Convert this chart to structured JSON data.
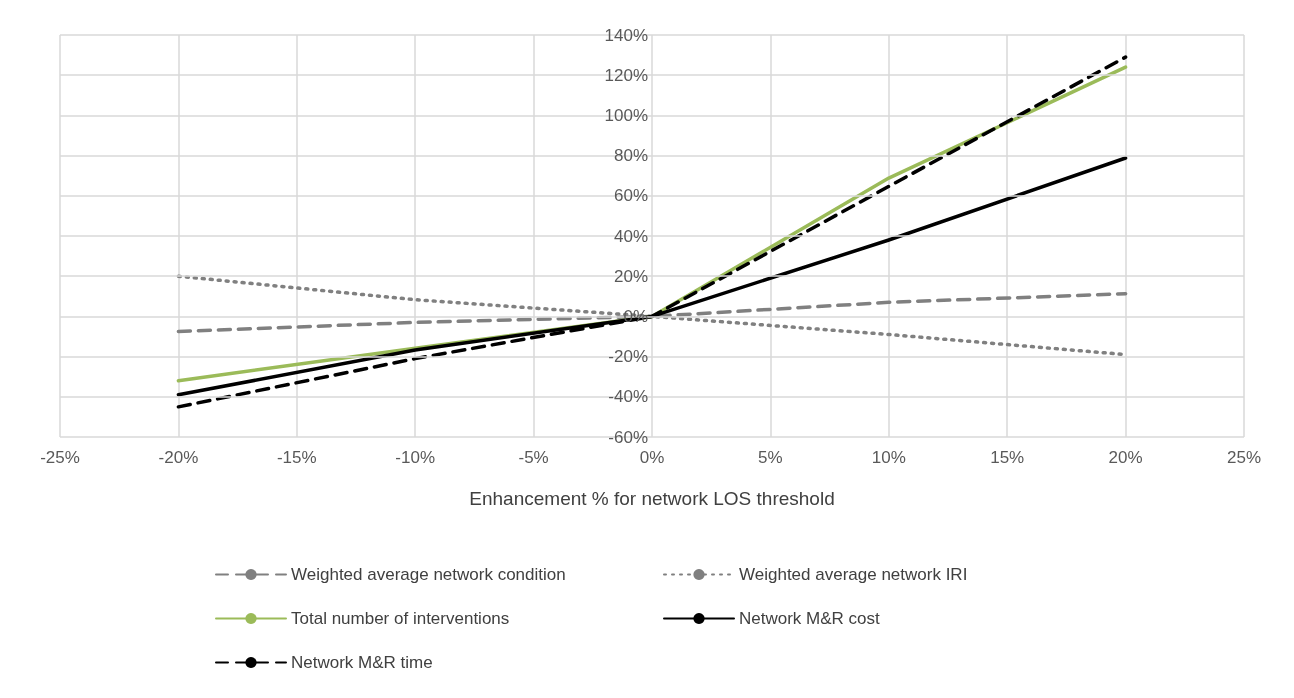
{
  "chart_data": {
    "type": "line",
    "xlabel": "Enhancement % for network LOS threshold",
    "x": [
      -20,
      -10,
      0,
      10,
      20
    ],
    "series": [
      {
        "name": "Weighted average network condition",
        "color": "#808080",
        "line_style": "dashed",
        "values": [
          -7.5,
          -3,
          0,
          7,
          11.3
        ]
      },
      {
        "name": "Weighted average network IRI",
        "color": "#808080",
        "line_style": "dotted",
        "values": [
          20,
          8.3,
          0,
          -9,
          -19
        ]
      },
      {
        "name": "Total number of interventions",
        "color": "#9bbb59",
        "line_style": "solid",
        "values": [
          -32,
          -15.8,
          0,
          68.8,
          124
        ]
      },
      {
        "name": "Network M&R cost",
        "color": "#000000",
        "line_style": "solid",
        "values": [
          -39,
          -16.7,
          0,
          38,
          78.8
        ]
      },
      {
        "name": "Network M&R time",
        "color": "#000000",
        "line_style": "dashed",
        "values": [
          -45,
          -21,
          0,
          64.7,
          129
        ]
      }
    ],
    "xlim": [
      -25,
      25
    ],
    "xticks": [
      {
        "value": -25,
        "label": "-25%"
      },
      {
        "value": -20,
        "label": "-20%"
      },
      {
        "value": -15,
        "label": "-15%"
      },
      {
        "value": -10,
        "label": "-10%"
      },
      {
        "value": -5,
        "label": "-5%"
      },
      {
        "value": 0,
        "label": "0%"
      },
      {
        "value": 5,
        "label": "5%"
      },
      {
        "value": 10,
        "label": "10%"
      },
      {
        "value": 15,
        "label": "15%"
      },
      {
        "value": 20,
        "label": "20%"
      },
      {
        "value": 25,
        "label": "25%"
      }
    ],
    "ylim": [
      -60,
      140
    ],
    "yticks": [
      {
        "value": -60,
        "label": "-60%"
      },
      {
        "value": -40,
        "label": "-40%"
      },
      {
        "value": -20,
        "label": "-20%"
      },
      {
        "value": 0,
        "label": "0%"
      },
      {
        "value": 20,
        "label": "20%"
      },
      {
        "value": 40,
        "label": "40%"
      },
      {
        "value": 60,
        "label": "60%"
      },
      {
        "value": 80,
        "label": "80%"
      },
      {
        "value": 100,
        "label": "100%"
      },
      {
        "value": 120,
        "label": "120%"
      },
      {
        "value": 140,
        "label": "140%"
      }
    ],
    "grid": true,
    "legend": "bottom",
    "marker": "none"
  }
}
